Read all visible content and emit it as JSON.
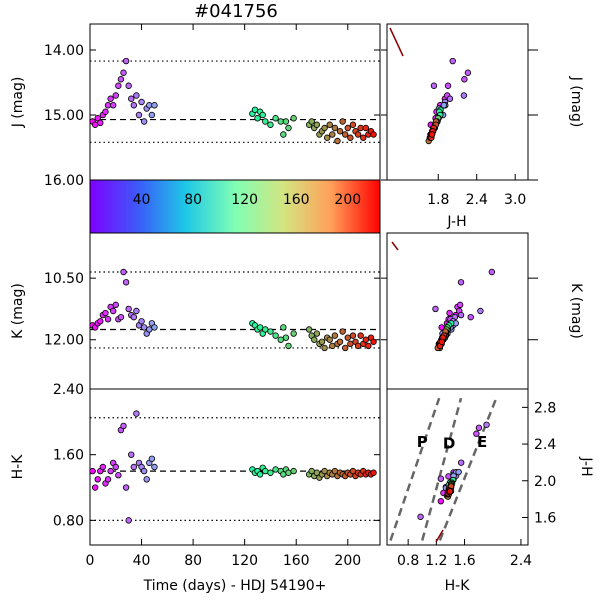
{
  "chart_data": {
    "type": "scatter",
    "title": "#041756",
    "colorbar": {
      "tick_labels": [
        "40",
        "80",
        "120",
        "160",
        "200"
      ],
      "ticks": [
        40,
        80,
        120,
        160,
        200
      ],
      "range": [
        0,
        225
      ],
      "colormap": "rainbow"
    },
    "panels": {
      "j_time": {
        "ylabel": "J (mag)",
        "yticks": [
          "14.00",
          "15.00",
          "16.00"
        ],
        "ytick_values": [
          14.0,
          15.0,
          16.0
        ],
        "ylim_inverted": [
          13.6,
          16.0
        ],
        "mean": 15.07,
        "dotted": [
          14.17,
          15.42
        ]
      },
      "k_time": {
        "ylabel": "K (mag)",
        "yticks": [
          "10.50",
          "12.00"
        ],
        "ytick_values": [
          10.5,
          12.0
        ],
        "ylim_inverted": [
          9.4,
          13.2
        ],
        "mean": 11.75,
        "dotted": [
          10.35,
          12.2
        ]
      },
      "hk_time": {
        "ylabel": "H-K",
        "yticks": [
          "2.40",
          "1.60",
          "0.80"
        ],
        "ytick_values": [
          2.4,
          1.6,
          0.8
        ],
        "ylim": [
          0.5,
          2.4
        ],
        "mean": 1.4,
        "dotted": [
          2.05,
          0.8
        ]
      },
      "j_jh": {
        "xlabel": "J-H",
        "ylabel": "J (mag)",
        "xticks": [
          "1.8",
          "2.4",
          "3.0"
        ],
        "xtick_values": [
          1.8,
          2.4,
          3.0
        ],
        "xlim": [
          1.0,
          3.2
        ]
      },
      "k_hk": {
        "ylabel": "K (mag)"
      },
      "cc": {
        "xlabel": "H-K",
        "ylabel": "J-H",
        "xticks": [
          "0.8",
          "1.2",
          "1.6",
          "2.4"
        ],
        "xtick_values": [
          0.8,
          1.2,
          1.6,
          2.4
        ],
        "yticks": [
          "2.8",
          "2.4",
          "2.0",
          "1.6"
        ],
        "ytick_values": [
          2.8,
          2.4,
          2.0,
          1.6
        ],
        "xlim": [
          0.5,
          2.5
        ],
        "ylim": [
          1.3,
          3.0
        ],
        "region_labels": [
          "P",
          "D",
          "E"
        ]
      }
    },
    "xaxis_time": {
      "xlabel": "Time (days) - HDJ 54190+",
      "xticks": [
        "0",
        "40",
        "80",
        "120",
        "160",
        "200"
      ],
      "xtick_values": [
        0,
        40,
        80,
        120,
        160,
        200
      ],
      "xlim": [
        0,
        225
      ]
    },
    "time_series": [
      {
        "t": 2,
        "J": 15.1,
        "K": 11.65,
        "HK": 1.4
      },
      {
        "t": 4,
        "J": 15.15,
        "K": 11.7,
        "HK": 1.2
      },
      {
        "t": 6,
        "J": 15.05,
        "K": 11.6,
        "HK": 1.3
      },
      {
        "t": 8,
        "J": 15.12,
        "K": 11.55,
        "HK": 1.4
      },
      {
        "t": 10,
        "J": 15.0,
        "K": 11.4,
        "HK": 1.45
      },
      {
        "t": 12,
        "J": 14.95,
        "K": 11.35,
        "HK": 1.25
      },
      {
        "t": 14,
        "J": 14.85,
        "K": 11.5,
        "HK": 1.3
      },
      {
        "t": 16,
        "J": 14.75,
        "K": 11.2,
        "HK": 1.4
      },
      {
        "t": 18,
        "J": 14.85,
        "K": 11.3,
        "HK": 1.5
      },
      {
        "t": 20,
        "J": 14.7,
        "K": 11.15,
        "HK": 1.45
      },
      {
        "t": 22,
        "J": 14.55,
        "K": 11.5,
        "HK": 1.35
      },
      {
        "t": 24,
        "J": 14.45,
        "K": 11.45,
        "HK": 1.9
      },
      {
        "t": 26,
        "J": 14.35,
        "K": 10.35,
        "HK": 1.95
      },
      {
        "t": 28,
        "J": 14.17,
        "K": 10.6,
        "HK": 1.2
      },
      {
        "t": 30,
        "J": 14.55,
        "K": 11.25,
        "HK": 0.8
      },
      {
        "t": 32,
        "J": 14.75,
        "K": 11.4,
        "HK": 1.6
      },
      {
        "t": 34,
        "J": 14.85,
        "K": 11.45,
        "HK": 1.45
      },
      {
        "t": 36,
        "J": 14.7,
        "K": 11.3,
        "HK": 2.1
      },
      {
        "t": 38,
        "J": 15.0,
        "K": 11.65,
        "HK": 1.5
      },
      {
        "t": 40,
        "J": 14.8,
        "K": 11.55,
        "HK": 1.45
      },
      {
        "t": 42,
        "J": 15.1,
        "K": 11.7,
        "HK": 1.4
      },
      {
        "t": 44,
        "J": 14.9,
        "K": 11.85,
        "HK": 1.3
      },
      {
        "t": 46,
        "J": 14.85,
        "K": 11.75,
        "HK": 1.5
      },
      {
        "t": 48,
        "J": 15.0,
        "K": 11.6,
        "HK": 1.55
      },
      {
        "t": 50,
        "J": 14.85,
        "K": 11.7,
        "HK": 1.45
      },
      {
        "t": 126,
        "J": 14.98,
        "K": 11.6,
        "HK": 1.42
      },
      {
        "t": 128,
        "J": 14.92,
        "K": 11.65,
        "HK": 1.38
      },
      {
        "t": 130,
        "J": 15.05,
        "K": 11.75,
        "HK": 1.4
      },
      {
        "t": 132,
        "J": 14.95,
        "K": 11.7,
        "HK": 1.36
      },
      {
        "t": 134,
        "J": 15.0,
        "K": 11.85,
        "HK": 1.44
      },
      {
        "t": 136,
        "J": 15.1,
        "K": 11.75,
        "HK": 1.4
      },
      {
        "t": 140,
        "J": 15.15,
        "K": 11.8,
        "HK": 1.38
      },
      {
        "t": 144,
        "J": 15.05,
        "K": 11.9,
        "HK": 1.42
      },
      {
        "t": 148,
        "J": 15.1,
        "K": 12.0,
        "HK": 1.4
      },
      {
        "t": 150,
        "J": 15.3,
        "K": 11.7,
        "HK": 1.36
      },
      {
        "t": 152,
        "J": 15.1,
        "K": 11.95,
        "HK": 1.42
      },
      {
        "t": 154,
        "J": 15.2,
        "K": 12.15,
        "HK": 1.38
      },
      {
        "t": 158,
        "J": 15.05,
        "K": 11.85,
        "HK": 1.4
      },
      {
        "t": 170,
        "J": 15.15,
        "K": 11.75,
        "HK": 1.36
      },
      {
        "t": 172,
        "J": 15.1,
        "K": 11.9,
        "HK": 1.4
      },
      {
        "t": 174,
        "J": 15.2,
        "K": 12.0,
        "HK": 1.34
      },
      {
        "t": 176,
        "J": 15.15,
        "K": 11.85,
        "HK": 1.38
      },
      {
        "t": 178,
        "J": 15.3,
        "K": 12.1,
        "HK": 1.32
      },
      {
        "t": 180,
        "J": 15.25,
        "K": 12.05,
        "HK": 1.36
      },
      {
        "t": 182,
        "J": 15.2,
        "K": 12.2,
        "HK": 1.4
      },
      {
        "t": 184,
        "J": 15.35,
        "K": 11.95,
        "HK": 1.34
      },
      {
        "t": 186,
        "J": 15.15,
        "K": 12.0,
        "HK": 1.38
      },
      {
        "t": 188,
        "J": 15.3,
        "K": 12.15,
        "HK": 1.36
      },
      {
        "t": 190,
        "J": 15.2,
        "K": 11.9,
        "HK": 1.4
      },
      {
        "t": 192,
        "J": 15.4,
        "K": 12.1,
        "HK": 1.34
      },
      {
        "t": 194,
        "J": 15.25,
        "K": 12.05,
        "HK": 1.38
      },
      {
        "t": 196,
        "J": 15.1,
        "K": 11.8,
        "HK": 1.36
      },
      {
        "t": 198,
        "J": 15.3,
        "K": 12.2,
        "HK": 1.34
      },
      {
        "t": 200,
        "J": 15.2,
        "K": 11.95,
        "HK": 1.38
      },
      {
        "t": 202,
        "J": 15.35,
        "K": 12.1,
        "HK": 1.36
      },
      {
        "t": 204,
        "J": 15.15,
        "K": 11.9,
        "HK": 1.4
      },
      {
        "t": 206,
        "J": 15.25,
        "K": 12.05,
        "HK": 1.34
      },
      {
        "t": 208,
        "J": 15.3,
        "K": 12.15,
        "HK": 1.38
      },
      {
        "t": 210,
        "J": 15.2,
        "K": 11.9,
        "HK": 1.36
      },
      {
        "t": 212,
        "J": 15.35,
        "K": 12.1,
        "HK": 1.4
      },
      {
        "t": 214,
        "J": 15.2,
        "K": 12.0,
        "HK": 1.36
      },
      {
        "t": 216,
        "J": 15.3,
        "K": 12.15,
        "HK": 1.38
      },
      {
        "t": 218,
        "J": 15.25,
        "K": 11.95,
        "HK": 1.36
      },
      {
        "t": 220,
        "J": 15.3,
        "K": 12.05,
        "HK": 1.38
      }
    ],
    "reddening_lines": [
      {
        "x1": 0.55,
        "y1": 1.35,
        "x2": 1.24,
        "y2": 2.9
      },
      {
        "x1": 1.0,
        "y1": 1.35,
        "x2": 1.55,
        "y2": 2.9
      },
      {
        "x1": 1.25,
        "y1": 1.35,
        "x2": 2.05,
        "y2": 2.9
      }
    ]
  }
}
